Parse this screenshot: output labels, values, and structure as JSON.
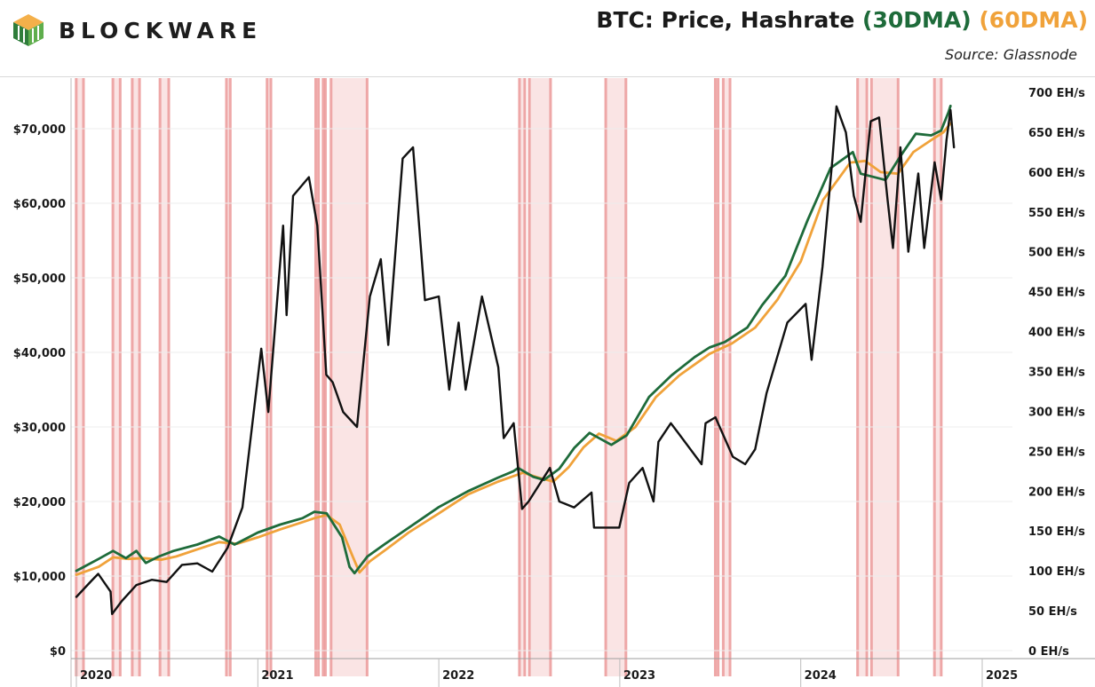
{
  "brand": {
    "name": "BLOCKWARE"
  },
  "title": {
    "main": "BTC: Price, Hashrate ",
    "part30": "(30DMA)",
    "part60": " (60DMA)"
  },
  "source": "Source: Glassnode",
  "colors": {
    "price": "#111111",
    "hash30": "#1e6b3a",
    "hash60": "#f0a23a",
    "band": "#f2b3b3",
    "bandEdge": "#e88d8d",
    "grid": "#ececec"
  },
  "chart_data": {
    "type": "line",
    "x_axis": {
      "ticks": [
        "2020",
        "2021",
        "2022",
        "2023",
        "2024",
        "2025"
      ],
      "range": [
        "2020-01-01",
        "2025-01-01"
      ]
    },
    "y_left": {
      "label_ticks": [
        "$0",
        "$10,000",
        "$20,000",
        "$30,000",
        "$40,000",
        "$50,000",
        "$60,000",
        "$70,000"
      ],
      "range": [
        0,
        73000
      ]
    },
    "y_right": {
      "label_ticks": [
        "0 EH/s",
        "50 EH/s",
        "100 EH/s",
        "150 EH/s",
        "200 EH/s",
        "250 EH/s",
        "300 EH/s",
        "350 EH/s",
        "400 EH/s",
        "450 EH/s",
        "500 EH/s",
        "550 EH/s",
        "600 EH/s",
        "650 EH/s",
        "700 EH/s"
      ],
      "range": [
        0,
        700
      ]
    },
    "shaded_periods": [
      [
        "2019-12-29",
        "2020-01-18"
      ],
      [
        "2020-03-12",
        "2020-04-01"
      ],
      [
        "2020-04-20",
        "2020-05-10"
      ],
      [
        "2020-06-15",
        "2020-07-08"
      ],
      [
        "2020-10-27",
        "2020-11-09"
      ],
      [
        "2021-01-17",
        "2021-01-30"
      ],
      [
        "2021-04-25",
        "2021-05-06"
      ],
      [
        "2021-05-10",
        "2021-05-20"
      ],
      [
        "2021-05-26",
        "2021-08-12"
      ],
      [
        "2022-06-10",
        "2022-06-26"
      ],
      [
        "2022-06-30",
        "2022-08-17"
      ],
      [
        "2022-12-01",
        "2023-01-16"
      ],
      [
        "2023-07-10",
        "2023-07-21"
      ],
      [
        "2023-07-26",
        "2023-08-14"
      ],
      [
        "2024-04-22",
        "2024-05-16"
      ],
      [
        "2024-05-20",
        "2024-07-18"
      ],
      [
        "2024-09-24",
        "2024-10-13"
      ]
    ],
    "series": [
      {
        "name": "Price",
        "axis": "left",
        "points": [
          [
            "2020-01-01",
            7200
          ],
          [
            "2020-02-01",
            9400
          ],
          [
            "2020-02-14",
            10300
          ],
          [
            "2020-03-10",
            7900
          ],
          [
            "2020-03-13",
            4900
          ],
          [
            "2020-04-01",
            6600
          ],
          [
            "2020-05-01",
            8800
          ],
          [
            "2020-06-01",
            9500
          ],
          [
            "2020-07-01",
            9200
          ],
          [
            "2020-08-01",
            11500
          ],
          [
            "2020-09-01",
            11700
          ],
          [
            "2020-10-01",
            10600
          ],
          [
            "2020-11-01",
            13800
          ],
          [
            "2020-12-01",
            19200
          ],
          [
            "2021-01-08",
            40500
          ],
          [
            "2021-01-22",
            32000
          ],
          [
            "2021-02-21",
            57000
          ],
          [
            "2021-02-28",
            45000
          ],
          [
            "2021-03-13",
            61000
          ],
          [
            "2021-04-14",
            63500
          ],
          [
            "2021-05-01",
            57000
          ],
          [
            "2021-05-19",
            37000
          ],
          [
            "2021-06-01",
            36000
          ],
          [
            "2021-06-22",
            32000
          ],
          [
            "2021-07-20",
            30000
          ],
          [
            "2021-08-15",
            47500
          ],
          [
            "2021-09-06",
            52500
          ],
          [
            "2021-09-21",
            41000
          ],
          [
            "2021-10-20",
            66000
          ],
          [
            "2021-11-10",
            67500
          ],
          [
            "2021-12-04",
            47000
          ],
          [
            "2022-01-01",
            47500
          ],
          [
            "2022-01-22",
            35000
          ],
          [
            "2022-02-10",
            44000
          ],
          [
            "2022-02-24",
            35000
          ],
          [
            "2022-03-29",
            47500
          ],
          [
            "2022-05-01",
            38000
          ],
          [
            "2022-05-12",
            28500
          ],
          [
            "2022-06-01",
            30500
          ],
          [
            "2022-06-18",
            19000
          ],
          [
            "2022-07-01",
            20000
          ],
          [
            "2022-08-13",
            24500
          ],
          [
            "2022-09-01",
            20000
          ],
          [
            "2022-10-01",
            19200
          ],
          [
            "2022-11-05",
            21200
          ],
          [
            "2022-11-10",
            16500
          ],
          [
            "2022-12-31",
            16500
          ],
          [
            "2023-01-20",
            22500
          ],
          [
            "2023-02-16",
            24500
          ],
          [
            "2023-03-10",
            20000
          ],
          [
            "2023-03-20",
            28000
          ],
          [
            "2023-04-14",
            30500
          ],
          [
            "2023-05-01",
            29000
          ],
          [
            "2023-06-15",
            25000
          ],
          [
            "2023-06-23",
            30500
          ],
          [
            "2023-07-13",
            31300
          ],
          [
            "2023-08-17",
            26000
          ],
          [
            "2023-09-11",
            25000
          ],
          [
            "2023-10-01",
            27000
          ],
          [
            "2023-10-24",
            34500
          ],
          [
            "2023-12-05",
            44000
          ],
          [
            "2024-01-11",
            46500
          ],
          [
            "2024-01-23",
            39000
          ],
          [
            "2024-02-14",
            51500
          ],
          [
            "2024-03-05",
            66000
          ],
          [
            "2024-03-13",
            73000
          ],
          [
            "2024-04-01",
            69500
          ],
          [
            "2024-04-17",
            61000
          ],
          [
            "2024-05-01",
            57500
          ],
          [
            "2024-05-21",
            71000
          ],
          [
            "2024-06-07",
            71500
          ],
          [
            "2024-06-24",
            60500
          ],
          [
            "2024-07-05",
            54000
          ],
          [
            "2024-07-20",
            67500
          ],
          [
            "2024-08-05",
            53500
          ],
          [
            "2024-08-25",
            64000
          ],
          [
            "2024-09-06",
            54000
          ],
          [
            "2024-09-27",
            65500
          ],
          [
            "2024-10-10",
            60500
          ],
          [
            "2024-10-21",
            68500
          ],
          [
            "2024-10-29",
            72500
          ],
          [
            "2024-11-05",
            67500
          ]
        ]
      },
      {
        "name": "Hashrate (30DMA)",
        "axis": "right",
        "points": [
          [
            "2020-01-01",
            100
          ],
          [
            "2020-02-15",
            115
          ],
          [
            "2020-03-15",
            125
          ],
          [
            "2020-04-10",
            116
          ],
          [
            "2020-05-01",
            125
          ],
          [
            "2020-05-20",
            110
          ],
          [
            "2020-06-15",
            118
          ],
          [
            "2020-07-15",
            125
          ],
          [
            "2020-09-01",
            133
          ],
          [
            "2020-10-15",
            143
          ],
          [
            "2020-11-15",
            133
          ],
          [
            "2021-01-01",
            148
          ],
          [
            "2021-02-15",
            158
          ],
          [
            "2021-04-01",
            166
          ],
          [
            "2021-04-25",
            174
          ],
          [
            "2021-05-20",
            172
          ],
          [
            "2021-06-20",
            142
          ],
          [
            "2021-07-05",
            105
          ],
          [
            "2021-07-15",
            97
          ],
          [
            "2021-08-10",
            118
          ],
          [
            "2021-09-15",
            134
          ],
          [
            "2021-11-01",
            154
          ],
          [
            "2022-01-01",
            180
          ],
          [
            "2022-03-01",
            200
          ],
          [
            "2022-05-01",
            217
          ],
          [
            "2022-06-01",
            225
          ],
          [
            "2022-06-10",
            229
          ],
          [
            "2022-07-10",
            218
          ],
          [
            "2022-08-01",
            214
          ],
          [
            "2022-09-01",
            228
          ],
          [
            "2022-10-01",
            254
          ],
          [
            "2022-11-01",
            273
          ],
          [
            "2022-12-15",
            258
          ],
          [
            "2023-01-15",
            270
          ],
          [
            "2023-03-01",
            318
          ],
          [
            "2023-04-15",
            345
          ],
          [
            "2023-06-01",
            368
          ],
          [
            "2023-07-01",
            380
          ],
          [
            "2023-08-01",
            387
          ],
          [
            "2023-09-15",
            405
          ],
          [
            "2023-10-15",
            433
          ],
          [
            "2023-12-01",
            470
          ],
          [
            "2024-01-15",
            540
          ],
          [
            "2024-03-01",
            605
          ],
          [
            "2024-04-15",
            625
          ],
          [
            "2024-05-01",
            598
          ],
          [
            "2024-06-20",
            590
          ],
          [
            "2024-07-20",
            620
          ],
          [
            "2024-08-20",
            648
          ],
          [
            "2024-09-20",
            646
          ],
          [
            "2024-10-10",
            652
          ],
          [
            "2024-10-25",
            675
          ],
          [
            "2024-10-29",
            683
          ]
        ]
      },
      {
        "name": "Hashrate (60DMA)",
        "axis": "right",
        "points": [
          [
            "2020-01-01",
            95
          ],
          [
            "2020-02-15",
            105
          ],
          [
            "2020-03-15",
            117
          ],
          [
            "2020-04-15",
            115
          ],
          [
            "2020-05-15",
            116
          ],
          [
            "2020-06-20",
            114
          ],
          [
            "2020-07-20",
            118
          ],
          [
            "2020-09-01",
            127
          ],
          [
            "2020-10-15",
            136
          ],
          [
            "2020-11-20",
            134
          ],
          [
            "2021-01-01",
            142
          ],
          [
            "2021-02-15",
            152
          ],
          [
            "2021-04-01",
            161
          ],
          [
            "2021-04-25",
            166
          ],
          [
            "2021-05-20",
            170
          ],
          [
            "2021-06-15",
            158
          ],
          [
            "2021-07-10",
            120
          ],
          [
            "2021-07-25",
            98
          ],
          [
            "2021-08-15",
            112
          ],
          [
            "2021-09-15",
            126
          ],
          [
            "2021-11-01",
            148
          ],
          [
            "2022-01-01",
            172
          ],
          [
            "2022-03-01",
            196
          ],
          [
            "2022-05-01",
            212
          ],
          [
            "2022-06-20",
            223
          ],
          [
            "2022-07-20",
            217
          ],
          [
            "2022-08-20",
            212
          ],
          [
            "2022-09-20",
            230
          ],
          [
            "2022-10-20",
            255
          ],
          [
            "2022-11-20",
            272
          ],
          [
            "2022-12-25",
            263
          ],
          [
            "2023-02-01",
            280
          ],
          [
            "2023-03-15",
            318
          ],
          [
            "2023-05-01",
            345
          ],
          [
            "2023-07-01",
            372
          ],
          [
            "2023-08-15",
            385
          ],
          [
            "2023-10-01",
            405
          ],
          [
            "2023-11-15",
            440
          ],
          [
            "2024-01-01",
            488
          ],
          [
            "2024-02-15",
            565
          ],
          [
            "2024-04-10",
            612
          ],
          [
            "2024-05-10",
            614
          ],
          [
            "2024-06-10",
            600
          ],
          [
            "2024-07-15",
            598
          ],
          [
            "2024-08-15",
            625
          ],
          [
            "2024-09-20",
            640
          ],
          [
            "2024-10-15",
            650
          ],
          [
            "2024-10-29",
            661
          ]
        ]
      }
    ]
  }
}
